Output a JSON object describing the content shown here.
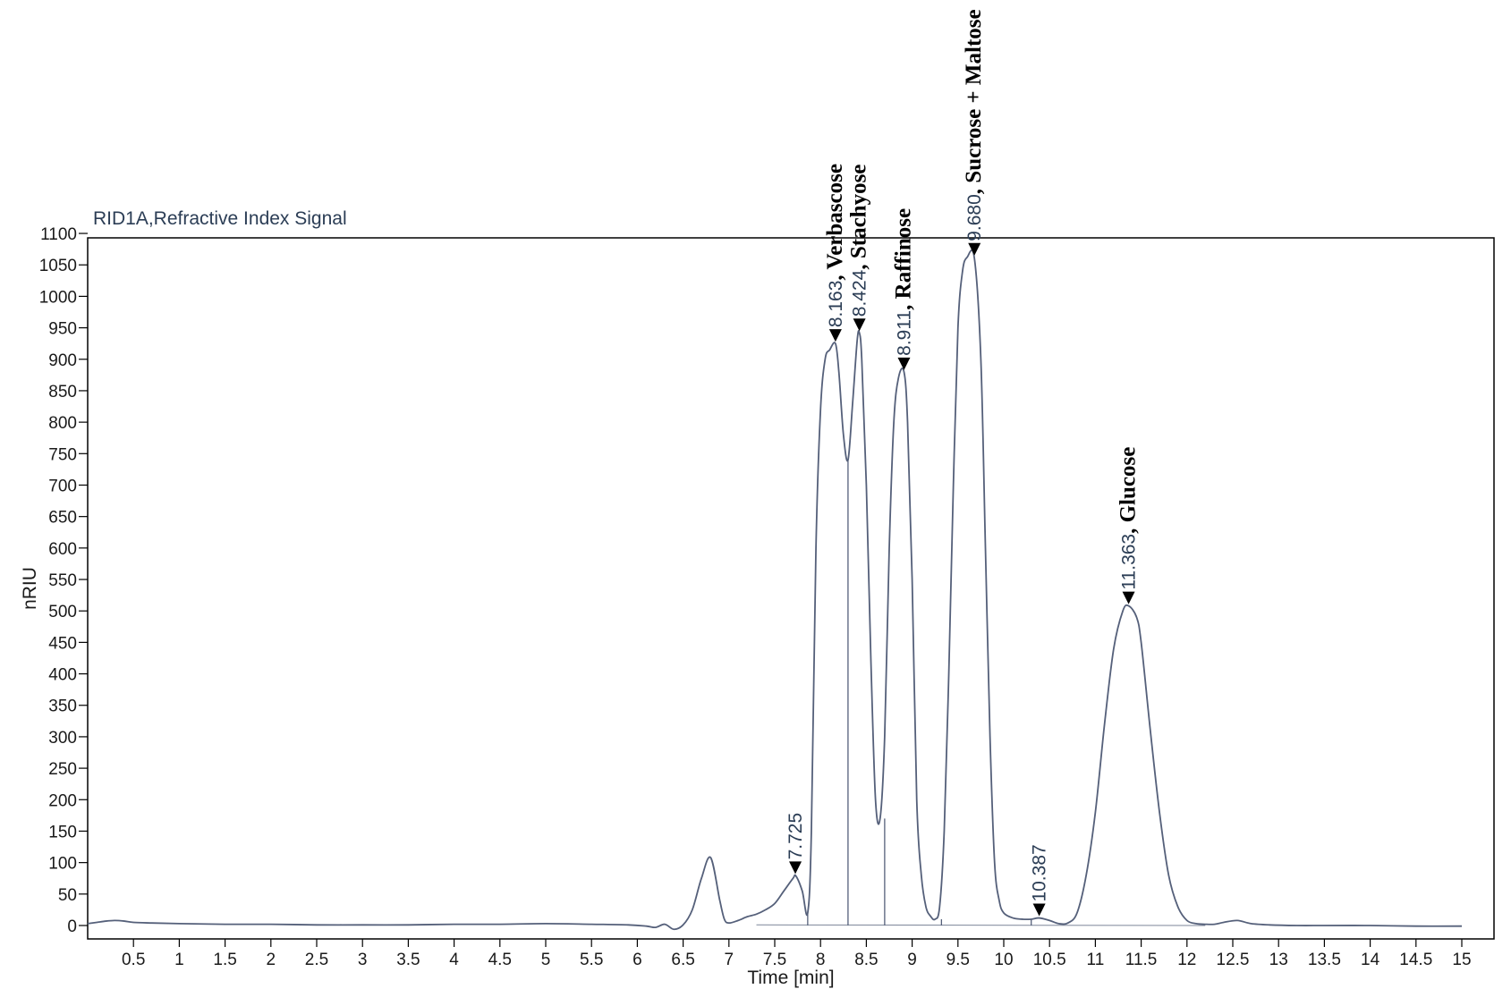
{
  "chart_data": {
    "type": "line",
    "title": "RID1A,Refractive Index Signal",
    "xlabel": "Time [min]",
    "ylabel": "nRIU",
    "xlim": [
      0,
      15.3
    ],
    "ylim": [
      -15,
      1100
    ],
    "x_ticks": [
      0.5,
      1,
      1.5,
      2,
      2.5,
      3,
      3.5,
      4,
      4.5,
      5,
      5.5,
      6,
      6.5,
      7,
      7.5,
      8,
      8.5,
      9,
      9.5,
      10,
      10.5,
      11,
      11.5,
      12,
      12.5,
      13,
      13.5,
      14,
      14.5,
      15
    ],
    "x_tick_labels": [
      "0.5",
      "1",
      "1.5",
      "2",
      "2.5",
      "3",
      "3.5",
      "4",
      "4.5",
      "5",
      "5.5",
      "6",
      "6.5",
      "7",
      "7.5",
      "8",
      "8.5",
      "9",
      "9.5",
      "10",
      "10.5",
      "11",
      "11.5",
      "12",
      "12.5",
      "13",
      "13.5",
      "14",
      "14.5",
      "15"
    ],
    "y_ticks": [
      0,
      50,
      100,
      150,
      200,
      250,
      300,
      350,
      400,
      450,
      500,
      550,
      600,
      650,
      700,
      750,
      800,
      850,
      900,
      950,
      1000,
      1050,
      1100
    ],
    "y_tick_labels": [
      "0",
      "50",
      "100",
      "150",
      "200",
      "250",
      "300",
      "350",
      "400",
      "450",
      "500",
      "550",
      "600",
      "650",
      "700",
      "750",
      "800",
      "850",
      "900",
      "950",
      "1000",
      "1050",
      "1100"
    ],
    "grid": false,
    "line_color": "#55607a",
    "series": [
      {
        "x": [
          0.0,
          0.1,
          0.2,
          0.3,
          0.4,
          0.5,
          0.7,
          1.0,
          1.5,
          2.0,
          2.5,
          3.0,
          3.5,
          4.0,
          4.5,
          5.0,
          5.5,
          5.9,
          6.1,
          6.2,
          6.3,
          6.4,
          6.5,
          6.6,
          6.7,
          6.8,
          6.9,
          6.95,
          7.0,
          7.1,
          7.2,
          7.3,
          7.4,
          7.5,
          7.6,
          7.7,
          7.73,
          7.8,
          7.86,
          7.9,
          7.95,
          8.0,
          8.05,
          8.1,
          8.163,
          8.2,
          8.25,
          8.3,
          8.35,
          8.4,
          8.424,
          8.45,
          8.5,
          8.55,
          8.6,
          8.65,
          8.7,
          8.75,
          8.8,
          8.85,
          8.911,
          8.95,
          9.0,
          9.05,
          9.1,
          9.15,
          9.2,
          9.25,
          9.3,
          9.35,
          9.4,
          9.45,
          9.5,
          9.55,
          9.6,
          9.68,
          9.75,
          9.8,
          9.85,
          9.9,
          9.95,
          10.0,
          10.1,
          10.2,
          10.3,
          10.387,
          10.5,
          10.6,
          10.7,
          10.8,
          10.9,
          11.0,
          11.1,
          11.2,
          11.3,
          11.363,
          11.45,
          11.5,
          11.6,
          11.7,
          11.8,
          11.9,
          12.0,
          12.1,
          12.2,
          12.3,
          12.4,
          12.55,
          12.7,
          12.9,
          13.2,
          13.5,
          14.0,
          14.5,
          15.0
        ],
        "y": [
          3,
          5,
          7,
          8,
          7,
          5,
          4,
          3,
          2,
          2,
          1,
          1,
          1,
          2,
          2,
          3,
          2,
          1,
          -1,
          -3,
          2,
          -6,
          1,
          25,
          75,
          108,
          40,
          10,
          4,
          8,
          14,
          18,
          25,
          35,
          55,
          75,
          79,
          55,
          20,
          150,
          600,
          820,
          900,
          915,
          925,
          880,
          780,
          740,
          830,
          930,
          942,
          900,
          700,
          420,
          200,
          170,
          300,
          600,
          800,
          870,
          880,
          800,
          550,
          200,
          80,
          30,
          15,
          10,
          30,
          150,
          400,
          700,
          950,
          1040,
          1062,
          1060,
          900,
          600,
          300,
          100,
          40,
          20,
          12,
          10,
          10,
          12,
          8,
          3,
          4,
          20,
          80,
          180,
          320,
          440,
          500,
          508,
          490,
          450,
          310,
          180,
          80,
          30,
          8,
          3,
          2,
          2,
          5,
          8,
          3,
          1,
          0,
          0,
          0,
          -1,
          -1
        ]
      }
    ],
    "peaks": [
      {
        "rt": 7.725,
        "height": 79,
        "label": "7.725",
        "name": ""
      },
      {
        "rt": 8.163,
        "height": 925,
        "label": "8.163",
        "name": ", Verbascose"
      },
      {
        "rt": 8.424,
        "height": 942,
        "label": "8.424",
        "name": ", Stachyose"
      },
      {
        "rt": 8.911,
        "height": 880,
        "label": "8.911",
        "name": ", Raffinose"
      },
      {
        "rt": 9.68,
        "height": 1062,
        "label": "9.680",
        "name": ", Sucrose + Maltose"
      },
      {
        "rt": 10.387,
        "height": 12,
        "label": "10.387",
        "name": ""
      },
      {
        "rt": 11.363,
        "height": 508,
        "label": "11.363",
        "name": ", Glucose"
      }
    ],
    "baseline_drops": [
      {
        "x": 7.86,
        "y": 20
      },
      {
        "x": 8.3,
        "y": 740
      },
      {
        "x": 8.7,
        "y": 170
      },
      {
        "x": 9.32,
        "y": 10
      },
      {
        "x": 10.3,
        "y": 10
      }
    ]
  }
}
